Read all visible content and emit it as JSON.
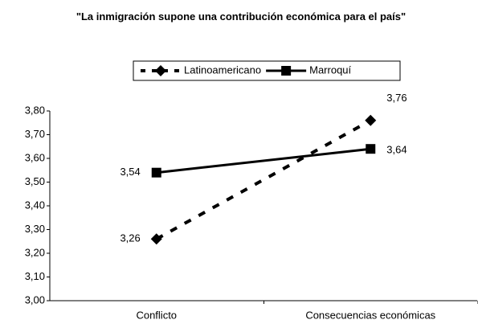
{
  "chart_data": {
    "type": "line",
    "title": "\"La inmigración supone una contribución económica para el país\"",
    "categories": [
      "Conflicto",
      "Consecuencias económicas"
    ],
    "series": [
      {
        "name": "Latinoamericano",
        "color": "#000000",
        "style": "dashed",
        "marker": "diamond",
        "values": [
          3.26,
          3.76
        ],
        "value_labels": [
          "3,26",
          "3,76"
        ]
      },
      {
        "name": "Marroquí",
        "color": "#000000",
        "style": "solid",
        "marker": "square",
        "values": [
          3.54,
          3.64
        ],
        "value_labels": [
          "3,54",
          "3,64"
        ]
      }
    ],
    "ylim": [
      3.0,
      3.8
    ],
    "yticks": [
      {
        "value": 3.0,
        "label": "3,00"
      },
      {
        "value": 3.1,
        "label": "3,10"
      },
      {
        "value": 3.2,
        "label": "3,20"
      },
      {
        "value": 3.3,
        "label": "3,30"
      },
      {
        "value": 3.4,
        "label": "3,40"
      },
      {
        "value": 3.5,
        "label": "3,50"
      },
      {
        "value": 3.6,
        "label": "3,60"
      },
      {
        "value": 3.7,
        "label": "3,70"
      },
      {
        "value": 3.8,
        "label": "3,80"
      }
    ],
    "grid": false,
    "legend": "top"
  }
}
